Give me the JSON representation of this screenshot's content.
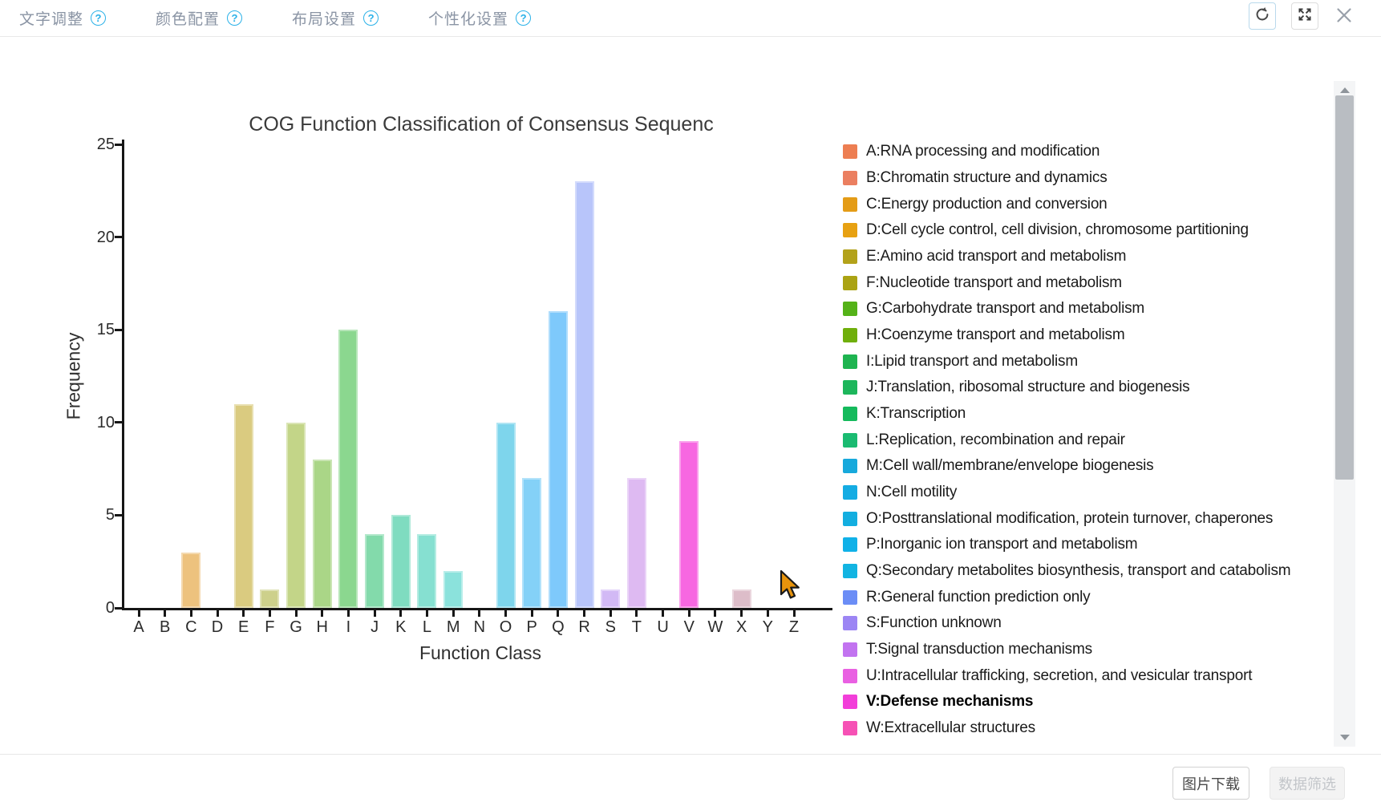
{
  "toolbar": {
    "tabs": [
      {
        "label": "文字调整"
      },
      {
        "label": "颜色配置"
      },
      {
        "label": "布局设置"
      },
      {
        "label": "个性化设置"
      }
    ],
    "help_symbol": "?"
  },
  "chart_data": {
    "type": "bar",
    "title": "COG Function Classification of Consensus Sequenc",
    "xlabel": "Function Class",
    "ylabel": "Frequency",
    "ylim": [
      0,
      25
    ],
    "yticks": [
      0,
      5,
      10,
      15,
      20,
      25
    ],
    "grid": false,
    "legend_position": "right",
    "categories": [
      "A",
      "B",
      "C",
      "D",
      "E",
      "F",
      "G",
      "H",
      "I",
      "J",
      "K",
      "L",
      "M",
      "N",
      "O",
      "P",
      "Q",
      "R",
      "S",
      "T",
      "U",
      "V",
      "W",
      "X",
      "Y",
      "Z"
    ],
    "values": [
      0,
      0,
      3,
      0,
      11,
      1,
      10,
      8,
      15,
      4,
      5,
      4,
      2,
      0,
      10,
      7,
      16,
      23,
      1,
      7,
      0,
      9,
      0,
      1,
      0,
      0
    ],
    "bar_colors": [
      "#f1b99a",
      "#f0bba4",
      "#edc27e",
      "#eec48a",
      "#dacb80",
      "#cdd08b",
      "#c3d588",
      "#aad687",
      "#8bd78f",
      "#83daab",
      "#7fdcc0",
      "#86e0d1",
      "#8be2dc",
      "#83dcec",
      "#7ed5ec",
      "#84d1f7",
      "#7ec9fb",
      "#b8c5fa",
      "#d2b9f5",
      "#debaf2",
      "#eda5ef",
      "#f767e1",
      "#fa9ed4",
      "#ddbdc9",
      "#e8c9d3",
      "#eed3da"
    ]
  },
  "legend": {
    "items": [
      {
        "key": "A",
        "label": "A:RNA processing and modification",
        "color": "#ed7e52",
        "bold": false
      },
      {
        "key": "B",
        "label": "B:Chromatin structure and dynamics",
        "color": "#eb7f60",
        "bold": false
      },
      {
        "key": "C",
        "label": "C:Energy production and conversion",
        "color": "#e49c17",
        "bold": false
      },
      {
        "key": "D",
        "label": "D:Cell cycle control, cell division, chromosome partitioning",
        "color": "#e7a112",
        "bold": false
      },
      {
        "key": "E",
        "label": "E:Amino acid transport and metabolism",
        "color": "#b3a21a",
        "bold": false
      },
      {
        "key": "F",
        "label": "F:Nucleotide transport and metabolism",
        "color": "#aba313",
        "bold": false
      },
      {
        "key": "G",
        "label": "G:Carbohydrate transport and metabolism",
        "color": "#54b218",
        "bold": false
      },
      {
        "key": "H",
        "label": "H:Coenzyme transport and metabolism",
        "color": "#6faf0b",
        "bold": false
      },
      {
        "key": "I",
        "label": "I:Lipid transport and metabolism",
        "color": "#1eb450",
        "bold": false
      },
      {
        "key": "J",
        "label": "J:Translation, ribosomal structure and biogenesis",
        "color": "#1db65b",
        "bold": false
      },
      {
        "key": "K",
        "label": "K:Transcription",
        "color": "#15ba5c",
        "bold": false
      },
      {
        "key": "L",
        "label": "L:Replication, recombination and repair",
        "color": "#1abb71",
        "bold": false
      },
      {
        "key": "M",
        "label": "M:Cell wall/membrane/envelope biogenesis",
        "color": "#17a9dc",
        "bold": false
      },
      {
        "key": "N",
        "label": "N:Cell motility",
        "color": "#14ace3",
        "bold": false
      },
      {
        "key": "O",
        "label": "O:Posttranslational modification, protein turnover, chaperones",
        "color": "#13aee0",
        "bold": false
      },
      {
        "key": "P",
        "label": "P:Inorganic ion transport and metabolism",
        "color": "#10b1e8",
        "bold": false
      },
      {
        "key": "Q",
        "label": "Q:Secondary metabolites biosynthesis, transport and catabolism",
        "color": "#12b4e2",
        "bold": false
      },
      {
        "key": "R",
        "label": "R:General function prediction only",
        "color": "#6b8df6",
        "bold": false
      },
      {
        "key": "S",
        "label": "S:Function unknown",
        "color": "#9c85f4",
        "bold": false
      },
      {
        "key": "T",
        "label": "T:Signal transduction mechanisms",
        "color": "#c273f0",
        "bold": false
      },
      {
        "key": "U",
        "label": "U:Intracellular trafficking, secretion, and vesicular transport",
        "color": "#e960e2",
        "bold": false
      },
      {
        "key": "V",
        "label": "V:Defense mechanisms",
        "color": "#f23ed9",
        "bold": true
      },
      {
        "key": "W",
        "label": "W:Extracellular structures",
        "color": "#f651b5",
        "bold": false
      }
    ]
  },
  "footer": {
    "download_label": "图片下载",
    "filter_label": "数据筛选"
  }
}
